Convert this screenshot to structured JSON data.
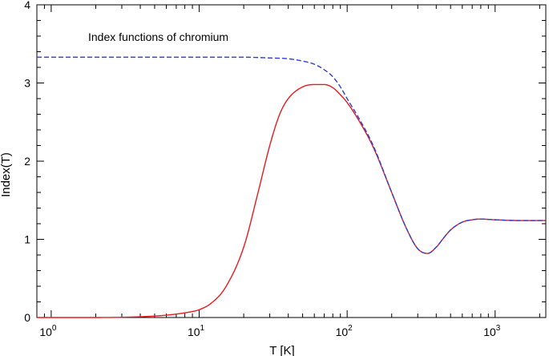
{
  "chart_data": {
    "type": "line",
    "title": "",
    "annotation": "Index functions of chromium",
    "xlabel": "T [K]",
    "ylabel": "Index(T)",
    "xscale": "log",
    "xlim": [
      0.8,
      2200
    ],
    "ylim": [
      0,
      4
    ],
    "x_tick_labels": [
      {
        "value": 1,
        "base": "10",
        "exp": "0"
      },
      {
        "value": 10,
        "base": "10",
        "exp": "1"
      },
      {
        "value": 100,
        "base": "10",
        "exp": "2"
      },
      {
        "value": 1000,
        "base": "10",
        "exp": "3"
      }
    ],
    "y_ticks": [
      0,
      1,
      2,
      3,
      4
    ],
    "grid": false,
    "legend": "none",
    "series": [
      {
        "color": "#e8191f",
        "style": "solid",
        "x": [
          0.8,
          2,
          4,
          6,
          8,
          10,
          12,
          15,
          20,
          25,
          30,
          35,
          40,
          50,
          60,
          70,
          80,
          90,
          100,
          120,
          150,
          200,
          250,
          300,
          350,
          400,
          450,
          500,
          600,
          700,
          800,
          900,
          1000,
          1500,
          2200
        ],
        "y": [
          0,
          0,
          0.01,
          0.03,
          0.06,
          0.1,
          0.18,
          0.38,
          0.9,
          1.6,
          2.2,
          2.6,
          2.8,
          2.95,
          2.98,
          2.98,
          2.94,
          2.85,
          2.75,
          2.52,
          2.18,
          1.6,
          1.15,
          0.88,
          0.82,
          0.9,
          1.02,
          1.12,
          1.22,
          1.25,
          1.26,
          1.255,
          1.25,
          1.24,
          1.24
        ]
      },
      {
        "color": "#2b3fd6",
        "style": "dashed",
        "x": [
          0.8,
          1,
          2,
          5,
          10,
          20,
          30,
          40,
          50,
          60,
          70,
          80,
          90,
          100,
          120,
          150,
          200,
          250,
          300,
          350,
          400,
          450,
          500,
          600,
          700,
          800,
          900,
          1000,
          1500,
          2200
        ],
        "y": [
          3.33,
          3.33,
          3.33,
          3.33,
          3.33,
          3.33,
          3.32,
          3.31,
          3.28,
          3.24,
          3.17,
          3.08,
          2.95,
          2.8,
          2.55,
          2.2,
          1.6,
          1.15,
          0.88,
          0.82,
          0.9,
          1.02,
          1.12,
          1.22,
          1.25,
          1.26,
          1.255,
          1.25,
          1.24,
          1.24
        ]
      }
    ]
  }
}
